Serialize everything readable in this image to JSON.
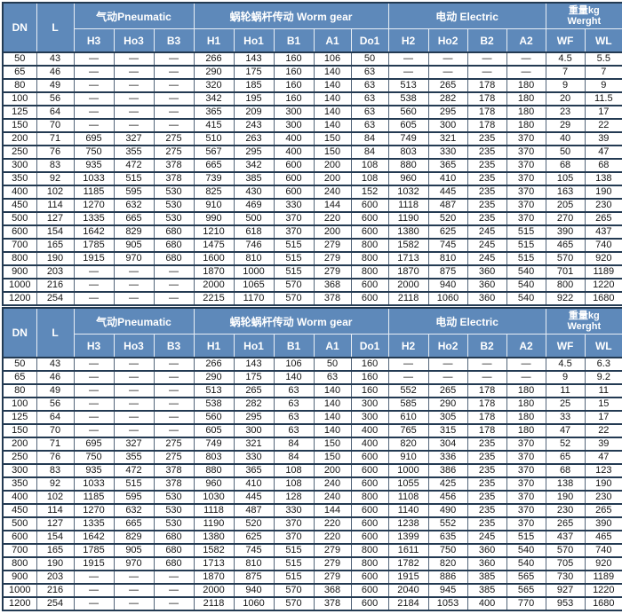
{
  "columns": {
    "dn_label": "DN",
    "l_label": "L",
    "keys": [
      "DN",
      "L",
      "H3",
      "Ho3",
      "B3",
      "H1",
      "Ho1",
      "B1",
      "A1",
      "Do1",
      "H2",
      "Ho2",
      "B2",
      "A2",
      "WF",
      "WL"
    ],
    "groups": [
      {
        "id": "pneumatic",
        "label": "气动Pneumatic",
        "cols": [
          "H3",
          "Ho3",
          "B3"
        ]
      },
      {
        "id": "worm-gear",
        "label": "蜗轮蜗杆传动  Worm gear",
        "cols": [
          "H1",
          "Ho1",
          "B1",
          "A1",
          "Do1"
        ]
      },
      {
        "id": "electric",
        "label": "电动  Electric",
        "cols": [
          "H2",
          "Ho2",
          "B2",
          "A2"
        ]
      },
      {
        "id": "weight",
        "label_line1": "重量kg",
        "label_line2": "Werght",
        "cols": [
          "WF",
          "WL"
        ]
      }
    ]
  },
  "tables": [
    {
      "name": "dimension-table-1",
      "rows": [
        [
          "50",
          "43",
          "—",
          "—",
          "—",
          "266",
          "143",
          "160",
          "106",
          "50",
          "—",
          "—",
          "—",
          "—",
          "4.5",
          "5.5"
        ],
        [
          "65",
          "46",
          "—",
          "—",
          "—",
          "290",
          "175",
          "160",
          "140",
          "63",
          "—",
          "—",
          "—",
          "—",
          "7",
          "7"
        ],
        [
          "80",
          "49",
          "—",
          "—",
          "—",
          "320",
          "185",
          "160",
          "140",
          "63",
          "513",
          "265",
          "178",
          "180",
          "9",
          "9"
        ],
        [
          "100",
          "56",
          "—",
          "—",
          "—",
          "342",
          "195",
          "160",
          "140",
          "63",
          "538",
          "282",
          "178",
          "180",
          "20",
          "11.5"
        ],
        [
          "125",
          "64",
          "—",
          "—",
          "—",
          "365",
          "209",
          "300",
          "140",
          "63",
          "560",
          "295",
          "178",
          "180",
          "23",
          "17"
        ],
        [
          "150",
          "70",
          "—",
          "—",
          "—",
          "415",
          "243",
          "300",
          "140",
          "63",
          "605",
          "300",
          "178",
          "180",
          "29",
          "22"
        ],
        [
          "200",
          "71",
          "695",
          "327",
          "275",
          "510",
          "263",
          "400",
          "150",
          "84",
          "749",
          "321",
          "235",
          "370",
          "40",
          "39"
        ],
        [
          "250",
          "76",
          "750",
          "355",
          "275",
          "567",
          "295",
          "400",
          "150",
          "84",
          "803",
          "330",
          "235",
          "370",
          "50",
          "47"
        ],
        [
          "300",
          "83",
          "935",
          "472",
          "378",
          "665",
          "342",
          "600",
          "200",
          "108",
          "880",
          "365",
          "235",
          "370",
          "68",
          "68"
        ],
        [
          "350",
          "92",
          "1033",
          "515",
          "378",
          "739",
          "385",
          "600",
          "200",
          "108",
          "960",
          "410",
          "235",
          "370",
          "105",
          "138"
        ],
        [
          "400",
          "102",
          "1185",
          "595",
          "530",
          "825",
          "430",
          "600",
          "240",
          "152",
          "1032",
          "445",
          "235",
          "370",
          "163",
          "190"
        ],
        [
          "450",
          "114",
          "1270",
          "632",
          "530",
          "910",
          "469",
          "330",
          "144",
          "600",
          "1118",
          "487",
          "235",
          "370",
          "205",
          "230"
        ],
        [
          "500",
          "127",
          "1335",
          "665",
          "530",
          "990",
          "500",
          "370",
          "220",
          "600",
          "1190",
          "520",
          "235",
          "370",
          "270",
          "265"
        ],
        [
          "600",
          "154",
          "1642",
          "829",
          "680",
          "1210",
          "618",
          "370",
          "200",
          "600",
          "1380",
          "625",
          "245",
          "515",
          "390",
          "437"
        ],
        [
          "700",
          "165",
          "1785",
          "905",
          "680",
          "1475",
          "746",
          "515",
          "279",
          "800",
          "1582",
          "745",
          "245",
          "515",
          "465",
          "740"
        ],
        [
          "800",
          "190",
          "1915",
          "970",
          "680",
          "1600",
          "810",
          "515",
          "279",
          "800",
          "1713",
          "810",
          "245",
          "515",
          "570",
          "920"
        ],
        [
          "900",
          "203",
          "—",
          "—",
          "—",
          "1870",
          "1000",
          "515",
          "279",
          "800",
          "1870",
          "875",
          "360",
          "540",
          "701",
          "1189"
        ],
        [
          "1000",
          "216",
          "—",
          "—",
          "—",
          "2000",
          "1065",
          "570",
          "368",
          "600",
          "2000",
          "940",
          "360",
          "540",
          "800",
          "1220"
        ],
        [
          "1200",
          "254",
          "—",
          "—",
          "—",
          "2215",
          "1170",
          "570",
          "378",
          "600",
          "2118",
          "1060",
          "360",
          "540",
          "922",
          "1680"
        ]
      ]
    },
    {
      "name": "dimension-table-2",
      "rows": [
        [
          "50",
          "43",
          "—",
          "—",
          "—",
          "266",
          "143",
          "106",
          "50",
          "160",
          "—",
          "—",
          "—",
          "—",
          "4.5",
          "6.3"
        ],
        [
          "65",
          "46",
          "—",
          "—",
          "—",
          "290",
          "175",
          "140",
          "63",
          "160",
          "—",
          "—",
          "—",
          "—",
          "9",
          "9.2"
        ],
        [
          "80",
          "49",
          "—",
          "—",
          "—",
          "513",
          "265",
          "63",
          "140",
          "160",
          "552",
          "265",
          "178",
          "180",
          "11",
          "11"
        ],
        [
          "100",
          "56",
          "—",
          "—",
          "—",
          "538",
          "282",
          "63",
          "140",
          "300",
          "585",
          "290",
          "178",
          "180",
          "25",
          "15"
        ],
        [
          "125",
          "64",
          "—",
          "—",
          "—",
          "560",
          "295",
          "63",
          "140",
          "300",
          "610",
          "305",
          "178",
          "180",
          "33",
          "17"
        ],
        [
          "150",
          "70",
          "—",
          "—",
          "—",
          "605",
          "300",
          "63",
          "140",
          "400",
          "765",
          "315",
          "178",
          "180",
          "47",
          "22"
        ],
        [
          "200",
          "71",
          "695",
          "327",
          "275",
          "749",
          "321",
          "84",
          "150",
          "400",
          "820",
          "304",
          "235",
          "370",
          "52",
          "39"
        ],
        [
          "250",
          "76",
          "750",
          "355",
          "275",
          "803",
          "330",
          "84",
          "150",
          "600",
          "910",
          "336",
          "235",
          "370",
          "65",
          "47"
        ],
        [
          "300",
          "83",
          "935",
          "472",
          "378",
          "880",
          "365",
          "108",
          "200",
          "600",
          "1000",
          "386",
          "235",
          "370",
          "68",
          "123"
        ],
        [
          "350",
          "92",
          "1033",
          "515",
          "378",
          "960",
          "410",
          "108",
          "240",
          "600",
          "1055",
          "425",
          "235",
          "370",
          "138",
          "190"
        ],
        [
          "400",
          "102",
          "1185",
          "595",
          "530",
          "1030",
          "445",
          "128",
          "240",
          "800",
          "1108",
          "456",
          "235",
          "370",
          "190",
          "230"
        ],
        [
          "450",
          "114",
          "1270",
          "632",
          "530",
          "1118",
          "487",
          "330",
          "144",
          "600",
          "1140",
          "490",
          "235",
          "370",
          "230",
          "265"
        ],
        [
          "500",
          "127",
          "1335",
          "665",
          "530",
          "1190",
          "520",
          "370",
          "220",
          "600",
          "1238",
          "552",
          "235",
          "370",
          "265",
          "390"
        ],
        [
          "600",
          "154",
          "1642",
          "829",
          "680",
          "1380",
          "625",
          "370",
          "220",
          "600",
          "1399",
          "635",
          "245",
          "515",
          "437",
          "465"
        ],
        [
          "700",
          "165",
          "1785",
          "905",
          "680",
          "1582",
          "745",
          "515",
          "279",
          "800",
          "1611",
          "750",
          "360",
          "540",
          "570",
          "740"
        ],
        [
          "800",
          "190",
          "1915",
          "970",
          "680",
          "1713",
          "810",
          "515",
          "279",
          "800",
          "1782",
          "820",
          "360",
          "540",
          "705",
          "920"
        ],
        [
          "900",
          "203",
          "—",
          "—",
          "—",
          "1870",
          "875",
          "515",
          "279",
          "600",
          "1915",
          "886",
          "385",
          "565",
          "730",
          "1189"
        ],
        [
          "1000",
          "216",
          "—",
          "—",
          "—",
          "2000",
          "940",
          "570",
          "368",
          "600",
          "2040",
          "945",
          "385",
          "565",
          "927",
          "1220"
        ],
        [
          "1200",
          "254",
          "—",
          "—",
          "—",
          "2118",
          "1060",
          "570",
          "378",
          "600",
          "2184",
          "1053",
          "400",
          "770",
          "953",
          "1680"
        ]
      ]
    }
  ],
  "colors": {
    "header_bg": "#5e89ba",
    "header_text": "#ffffff",
    "grid_dark": "#233a52",
    "grid_light": "#53657a"
  }
}
